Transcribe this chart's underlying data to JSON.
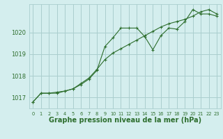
{
  "background_color": "#d4eeee",
  "grid_color": "#aacece",
  "line_color": "#2d6e2d",
  "marker_color": "#2d6e2d",
  "xlabel": "Graphe pression niveau de la mer (hPa)",
  "xlabel_fontsize": 7,
  "xlim": [
    -0.5,
    23.5
  ],
  "ylim": [
    1016.5,
    1021.3
  ],
  "yticks": [
    1017,
    1018,
    1019,
    1020
  ],
  "xticks": [
    0,
    1,
    2,
    3,
    4,
    5,
    6,
    7,
    8,
    9,
    10,
    11,
    12,
    13,
    14,
    15,
    16,
    17,
    18,
    19,
    20,
    21,
    22,
    23
  ],
  "line1_x": [
    0,
    1,
    2,
    3,
    4,
    5,
    6,
    7,
    8,
    9,
    10,
    11,
    12,
    13,
    14,
    15,
    16,
    17,
    18,
    19,
    20,
    21,
    22,
    23
  ],
  "line1_y": [
    1016.8,
    1017.2,
    1017.2,
    1017.2,
    1017.3,
    1017.4,
    1017.6,
    1017.85,
    1018.25,
    1019.35,
    1019.75,
    1020.2,
    1020.2,
    1020.2,
    1019.8,
    1019.2,
    1019.85,
    1020.2,
    1020.15,
    1020.5,
    1021.05,
    1020.85,
    1020.85,
    1020.75
  ],
  "line2_x": [
    0,
    1,
    2,
    3,
    4,
    5,
    6,
    7,
    8,
    9,
    10,
    11,
    12,
    13,
    14,
    15,
    16,
    17,
    18,
    19,
    20,
    21,
    22,
    23
  ],
  "line2_y": [
    1016.8,
    1017.2,
    1017.2,
    1017.25,
    1017.3,
    1017.4,
    1017.65,
    1017.9,
    1018.3,
    1018.75,
    1019.05,
    1019.25,
    1019.45,
    1019.65,
    1019.85,
    1020.05,
    1020.25,
    1020.4,
    1020.5,
    1020.6,
    1020.75,
    1020.95,
    1021.05,
    1020.85
  ]
}
